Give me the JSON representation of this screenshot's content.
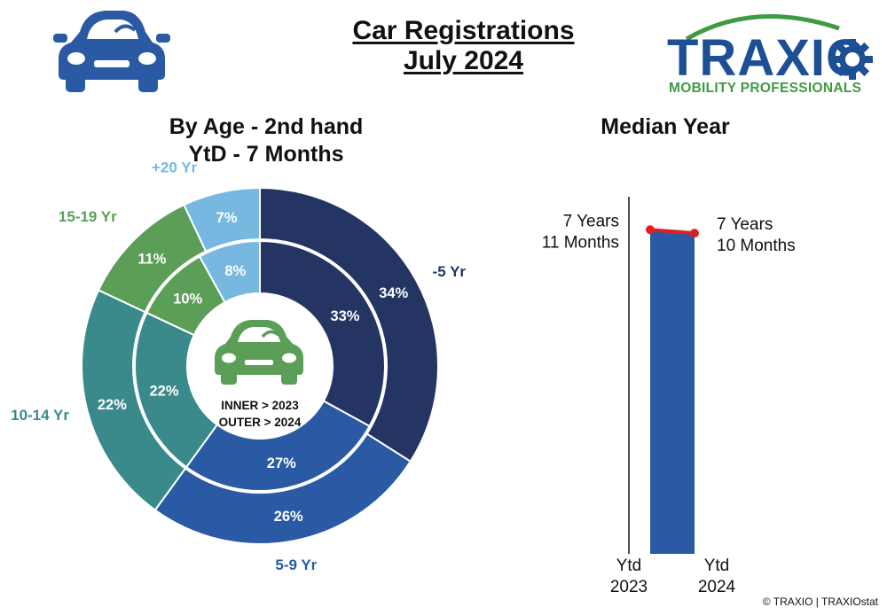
{
  "header": {
    "title_line1": "Car Registrations",
    "title_line2": "July 2024"
  },
  "logo": {
    "word": "TRAXIO",
    "tagline": "MOBILITY PROFESSIONALS",
    "colors": {
      "primary": "#1d4f95",
      "accent": "#3f9a43"
    }
  },
  "left_panel": {
    "title_line1": "By Age - 2nd hand",
    "title_line2": "YtD - 7 Months"
  },
  "right_panel": {
    "title": "Median Year"
  },
  "footer": {
    "copyright": "© TRAXIO | TRAXIOstat"
  },
  "chart_data": [
    {
      "type": "pie",
      "variant": "nested-donut",
      "title": "By Age - 2nd hand YtD - 7 Months",
      "center_label_line1": "INNER > 2023",
      "center_label_line2": "OUTER > 2024",
      "categories": [
        "-5 Yr",
        "5-9 Yr",
        "10-14 Yr",
        "15-19 Yr",
        "+20 Yr"
      ],
      "colors": [
        "#253563",
        "#2a5aa3",
        "#3a8a8c",
        "#5b9e57",
        "#76b8e0"
      ],
      "label_colors": [
        "#253563",
        "#2a5aa3",
        "#3a8a8c",
        "#5b9e57",
        "#76b8e0"
      ],
      "series": [
        {
          "name": "2023",
          "ring": "inner",
          "values": [
            33,
            27,
            22,
            10,
            8
          ],
          "labels": [
            "33%",
            "27%",
            "22%",
            "10%",
            "8%"
          ]
        },
        {
          "name": "2024",
          "ring": "outer",
          "values": [
            34,
            26,
            22,
            11,
            7
          ],
          "labels": [
            "34%",
            "26%",
            "22%",
            "11%",
            "7%"
          ]
        }
      ]
    },
    {
      "type": "bar",
      "title": "Median Year",
      "categories": [
        "Ytd\n2023",
        "Ytd\n2024"
      ],
      "category_lines": [
        [
          "Ytd",
          "2023"
        ],
        [
          "Ytd",
          "2024"
        ]
      ],
      "values_months": [
        95,
        94
      ],
      "value_labels": [
        [
          "7 Years",
          "11 Months"
        ],
        [
          "7 Years",
          "10 Months"
        ]
      ],
      "ylim_months": [
        0,
        100
      ],
      "bar_color": "#2a5aa3",
      "line_color": "#e02020"
    }
  ]
}
